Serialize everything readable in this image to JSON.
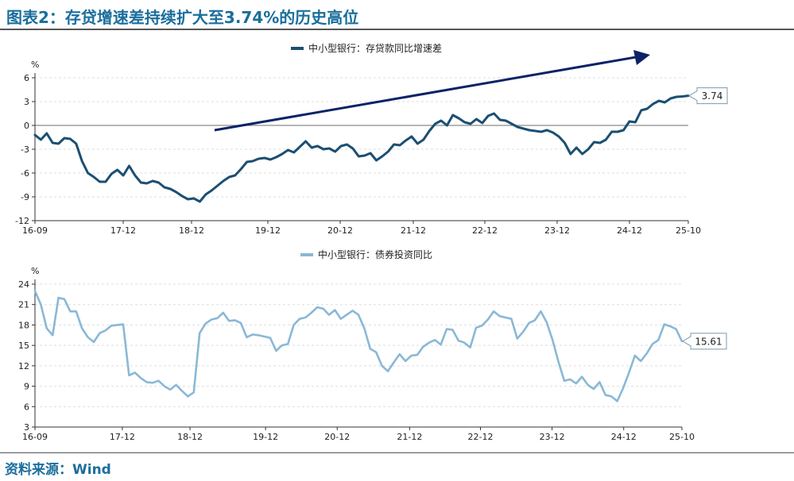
{
  "title": "图表2：存贷增速差持续扩大至3.74%的历史高位",
  "source": "资料来源：Wind",
  "chart_data": [
    {
      "type": "line",
      "series": [
        {
          "name": "中小型银行：存贷款同比增速差",
          "color": "#1b4f72"
        }
      ],
      "ylabel": "%",
      "ylim": [
        -12,
        6
      ],
      "yticks": [
        -12,
        -9,
        -6,
        -3,
        0,
        3,
        6
      ],
      "xticks": [
        "16-09",
        "17-12",
        "18-12",
        "19-12",
        "20-12",
        "21-12",
        "22-12",
        "23-12",
        "24-12",
        "25-10"
      ],
      "end_label": "3.74",
      "arrow": true,
      "values": [
        -1.2,
        -1.8,
        -1.0,
        -2.2,
        -2.3,
        -1.6,
        -1.7,
        -2.3,
        -4.5,
        -6.0,
        -6.5,
        -7.1,
        -7.1,
        -6.1,
        -5.6,
        -6.3,
        -5.1,
        -6.3,
        -7.2,
        -7.3,
        -7.0,
        -7.2,
        -7.8,
        -8.0,
        -8.4,
        -8.9,
        -9.3,
        -9.2,
        -9.6,
        -8.7,
        -8.2,
        -7.6,
        -7.0,
        -6.5,
        -6.3,
        -5.5,
        -4.6,
        -4.5,
        -4.2,
        -4.1,
        -4.3,
        -4.0,
        -3.6,
        -3.1,
        -3.4,
        -2.7,
        -2.0,
        -2.8,
        -2.6,
        -3.0,
        -2.9,
        -3.3,
        -2.6,
        -2.4,
        -2.9,
        -3.9,
        -3.8,
        -3.5,
        -4.4,
        -3.9,
        -3.3,
        -2.4,
        -2.5,
        -1.9,
        -1.4,
        -2.3,
        -1.8,
        -0.7,
        0.2,
        0.6,
        0.0,
        1.3,
        0.9,
        0.4,
        0.2,
        0.8,
        0.3,
        1.2,
        1.5,
        0.7,
        0.6,
        0.2,
        -0.2,
        -0.4,
        -0.6,
        -0.7,
        -0.8,
        -0.6,
        -0.9,
        -1.4,
        -2.2,
        -3.6,
        -2.8,
        -3.6,
        -3.0,
        -2.1,
        -2.2,
        -1.8,
        -0.8,
        -0.8,
        -0.6,
        0.5,
        0.4,
        1.9,
        2.1,
        2.7,
        3.1,
        2.9,
        3.4,
        3.6,
        3.65,
        3.74
      ]
    },
    {
      "type": "line",
      "series": [
        {
          "name": "中小型银行：债券投资同比",
          "color": "#8ab8d6"
        }
      ],
      "ylabel": "%",
      "ylim": [
        3,
        24
      ],
      "yticks": [
        3,
        6,
        9,
        12,
        15,
        18,
        21,
        24
      ],
      "xticks": [
        "16-09",
        "17-12",
        "18-12",
        "19-12",
        "20-12",
        "21-12",
        "22-12",
        "23-12",
        "24-12",
        "25-10"
      ],
      "end_label": "15.61",
      "arrow": false,
      "values": [
        23.0,
        21.0,
        17.5,
        16.5,
        22.0,
        21.8,
        20.0,
        20.0,
        17.5,
        16.2,
        15.5,
        16.8,
        17.2,
        17.9,
        18.0,
        18.1,
        10.6,
        11.0,
        10.2,
        9.6,
        9.5,
        9.8,
        9.0,
        8.5,
        9.2,
        8.3,
        7.5,
        8.1,
        16.8,
        18.2,
        18.8,
        19.0,
        19.8,
        18.6,
        18.7,
        18.3,
        16.2,
        16.6,
        16.5,
        16.3,
        16.1,
        14.2,
        15.0,
        15.2,
        18.0,
        18.9,
        19.1,
        19.8,
        20.6,
        20.4,
        19.5,
        20.2,
        18.9,
        19.5,
        20.1,
        19.5,
        17.5,
        14.5,
        14.0,
        12.0,
        11.2,
        12.5,
        13.7,
        12.7,
        13.5,
        13.6,
        14.8,
        15.4,
        15.8,
        15.1,
        17.4,
        17.3,
        15.7,
        15.4,
        14.7,
        17.6,
        17.9,
        18.8,
        20.0,
        19.3,
        19.1,
        18.9,
        16.0,
        17.0,
        18.3,
        18.7,
        20.0,
        18.4,
        15.8,
        12.6,
        9.8,
        10.0,
        9.4,
        10.4,
        9.2,
        8.6,
        9.6,
        7.7,
        7.5,
        6.8,
        8.7,
        11.0,
        13.5,
        12.7,
        13.8,
        15.2,
        15.8,
        18.1,
        17.8,
        17.4,
        15.61
      ]
    }
  ]
}
